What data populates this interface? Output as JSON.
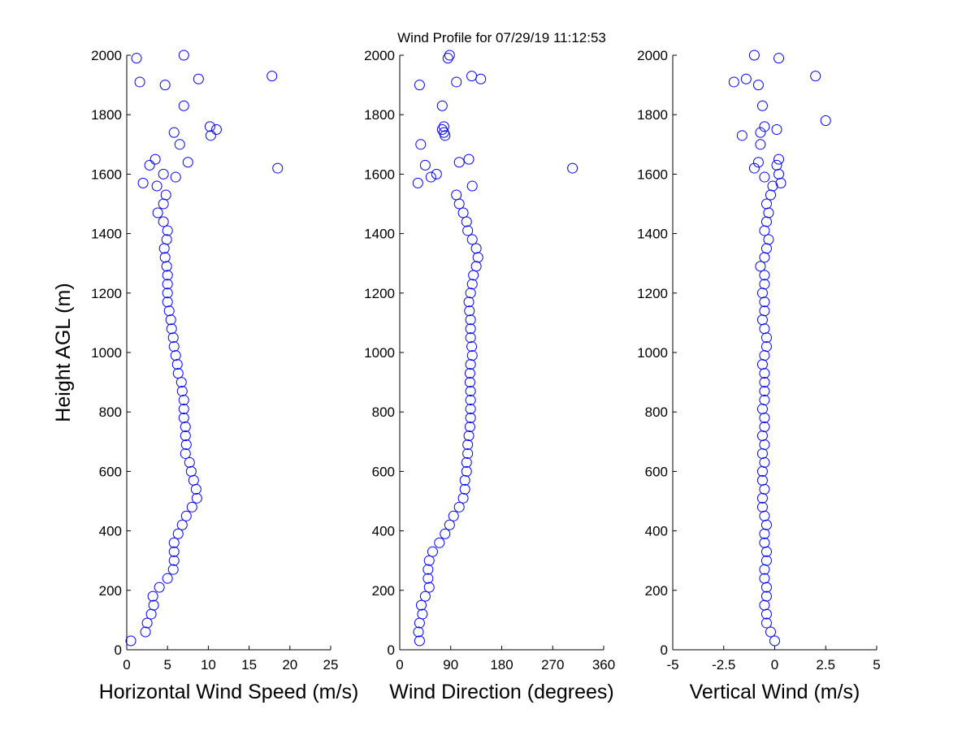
{
  "chart_data": [
    {
      "type": "scatter",
      "ylabel": "Height AGL (m)",
      "xlabel": "Horizontal Wind Speed (m/s)",
      "color": "#0000ff",
      "xlim": [
        0,
        25
      ],
      "xticks": [
        0,
        5,
        10,
        15,
        20,
        25
      ],
      "ylim": [
        0,
        2000
      ],
      "yticks": [
        0,
        200,
        400,
        600,
        800,
        1000,
        1200,
        1400,
        1600,
        1800,
        2000
      ],
      "x": [
        0.5,
        2.3,
        2.5,
        3,
        3.3,
        3.2,
        4,
        5,
        5.7,
        5.8,
        5.8,
        5.8,
        6.3,
        6.8,
        7.3,
        8,
        8.6,
        8.5,
        8.2,
        7.9,
        7.7,
        7.2,
        7.3,
        7.2,
        7.2,
        7.0,
        7.0,
        7.0,
        6.8,
        6.7,
        6.3,
        6.2,
        6.0,
        5.8,
        5.7,
        5.5,
        5.4,
        5.2,
        5.0,
        5.0,
        5.0,
        5.0,
        4.9,
        4.7,
        4.6,
        4.9,
        5.0,
        4.5,
        3.8,
        4.5,
        4.8,
        3.7,
        2,
        6,
        4.5,
        18.5,
        2.8,
        7.5,
        3.5,
        6.5,
        10.3,
        5.8,
        11,
        10.2,
        7,
        4.7,
        1.6,
        8.8,
        17.8,
        1.2,
        7
      ],
      "y": [
        30,
        60,
        90,
        120,
        150,
        180,
        210,
        240,
        270,
        300,
        330,
        360,
        390,
        420,
        450,
        480,
        510,
        540,
        570,
        600,
        630,
        660,
        690,
        720,
        750,
        780,
        810,
        840,
        870,
        900,
        930,
        960,
        990,
        1020,
        1050,
        1080,
        1110,
        1140,
        1170,
        1200,
        1230,
        1260,
        1290,
        1320,
        1350,
        1380,
        1410,
        1440,
        1470,
        1500,
        1530,
        1560,
        1570,
        1590,
        1600,
        1620,
        1630,
        1640,
        1650,
        1700,
        1730,
        1740,
        1750,
        1760,
        1830,
        1900,
        1910,
        1920,
        1930,
        1990,
        2000
      ]
    },
    {
      "type": "scatter",
      "title": "Wind Profile for  07/29/19 11:12:53",
      "xlabel": "Wind Direction (degrees)",
      "color": "#0000ff",
      "xlim": [
        0,
        360
      ],
      "xticks": [
        0,
        90,
        180,
        270,
        360
      ],
      "ylim": [
        0,
        2000
      ],
      "yticks": [
        0,
        200,
        400,
        600,
        800,
        1000,
        1200,
        1400,
        1600,
        1800,
        2000
      ],
      "x": [
        35,
        33,
        35,
        40,
        38,
        45,
        52,
        50,
        50,
        52,
        58,
        70,
        80,
        88,
        95,
        105,
        112,
        115,
        115,
        118,
        118,
        120,
        120,
        122,
        124,
        125,
        125,
        125,
        125,
        124,
        124,
        125,
        128,
        127,
        125,
        125,
        125,
        123,
        122,
        125,
        128,
        130,
        135,
        138,
        135,
        128,
        120,
        118,
        112,
        105,
        100,
        128,
        32,
        55,
        65,
        305,
        45,
        105,
        122,
        37,
        80,
        78,
        75,
        78,
        75,
        35,
        100,
        143,
        127,
        85,
        88
      ],
      "y": [
        30,
        60,
        90,
        120,
        150,
        180,
        210,
        240,
        270,
        300,
        330,
        360,
        390,
        420,
        450,
        480,
        510,
        540,
        570,
        600,
        630,
        660,
        690,
        720,
        750,
        780,
        810,
        840,
        870,
        900,
        930,
        960,
        990,
        1020,
        1050,
        1080,
        1110,
        1140,
        1170,
        1200,
        1230,
        1260,
        1290,
        1320,
        1350,
        1380,
        1410,
        1440,
        1470,
        1500,
        1530,
        1560,
        1570,
        1590,
        1600,
        1620,
        1630,
        1640,
        1650,
        1700,
        1730,
        1740,
        1750,
        1760,
        1830,
        1900,
        1910,
        1920,
        1930,
        1990,
        2000
      ]
    },
    {
      "type": "scatter",
      "xlabel": "Vertical Wind (m/s)",
      "color": "#0000ff",
      "xlim": [
        -5,
        5
      ],
      "xticks": [
        -5,
        -2.5,
        0,
        2.5,
        5
      ],
      "ylim": [
        0,
        2000
      ],
      "yticks": [
        0,
        200,
        400,
        600,
        800,
        1000,
        1200,
        1400,
        1600,
        1800,
        2000
      ],
      "x": [
        0.0,
        -0.2,
        -0.4,
        -0.4,
        -0.5,
        -0.4,
        -0.4,
        -0.5,
        -0.5,
        -0.4,
        -0.4,
        -0.5,
        -0.5,
        -0.4,
        -0.5,
        -0.6,
        -0.6,
        -0.5,
        -0.6,
        -0.6,
        -0.5,
        -0.6,
        -0.5,
        -0.6,
        -0.5,
        -0.5,
        -0.6,
        -0.5,
        -0.5,
        -0.5,
        -0.5,
        -0.6,
        -0.5,
        -0.4,
        -0.4,
        -0.5,
        -0.6,
        -0.5,
        -0.5,
        -0.6,
        -0.5,
        -0.5,
        -0.7,
        -0.5,
        -0.4,
        -0.3,
        -0.5,
        -0.4,
        -0.3,
        -0.4,
        -0.2,
        -0.1,
        0.3,
        -0.5,
        0.2,
        -1.0,
        0.1,
        -0.8,
        0.2,
        -0.7,
        -1.6,
        -0.7,
        0.1,
        -0.5,
        2.5,
        -0.6,
        -0.8,
        -2.0,
        -1.4,
        2.0,
        0.2,
        -1.0
      ],
      "y": [
        30,
        60,
        90,
        120,
        150,
        180,
        210,
        240,
        270,
        300,
        330,
        360,
        390,
        420,
        450,
        480,
        510,
        540,
        570,
        600,
        630,
        660,
        690,
        720,
        750,
        780,
        810,
        840,
        870,
        900,
        930,
        960,
        990,
        1020,
        1050,
        1080,
        1110,
        1140,
        1170,
        1200,
        1230,
        1260,
        1290,
        1320,
        1350,
        1380,
        1410,
        1440,
        1470,
        1500,
        1530,
        1560,
        1570,
        1590,
        1600,
        1620,
        1630,
        1640,
        1650,
        1700,
        1730,
        1740,
        1750,
        1760,
        1780,
        1830,
        1900,
        1910,
        1920,
        1930,
        1990,
        2000
      ]
    }
  ]
}
